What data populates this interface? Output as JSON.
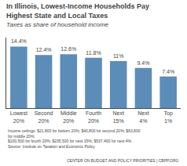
{
  "chart_data": {
    "type": "bar",
    "title": "In Illinois, Lowest-Income Households Pay\nHighest State and Local Taxes",
    "subtitle": "Taxes as share of household income",
    "categories": [
      "Lowest\n20%",
      "Second\n20%",
      "Middle\n20%",
      "Fourth\n20%",
      "Next\n15%",
      "Next\n4%",
      "Top\n1%"
    ],
    "values": [
      14.4,
      12.4,
      12.6,
      11.8,
      11.0,
      9.4,
      7.4
    ],
    "value_labels": [
      "14.4%",
      "12.4%",
      "12.6%",
      "11.8%",
      "11%",
      "9.4%",
      "7.4%"
    ],
    "data_labels": true,
    "color": "#5b8db8",
    "ylim": [
      0,
      16.5
    ],
    "grid": false,
    "tick_labels": "x",
    "annotations": [
      "Income ceilings: $21,800 for bottom 20%; $40,800 for second 20%; $63,800 for middle 20%;",
      "$100,500 for fourth 20%; $235,500 for next 15%; $537,400 for next 4%.",
      "Source: Institute on Taxation and Economic Policy",
      "CENTER ON BUDGET AND POLICY PRIORITIES | CBPP.ORG"
    ]
  }
}
